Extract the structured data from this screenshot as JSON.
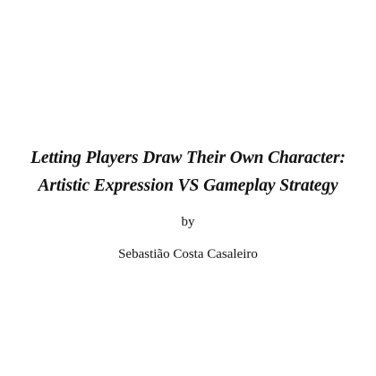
{
  "document": {
    "title_line_1": "Letting Players Draw Their Own Character:",
    "title_line_2": "Artistic Expression VS Gameplay Strategy",
    "by_label": "by",
    "author": "Sebastião Costa Casaleiro"
  }
}
